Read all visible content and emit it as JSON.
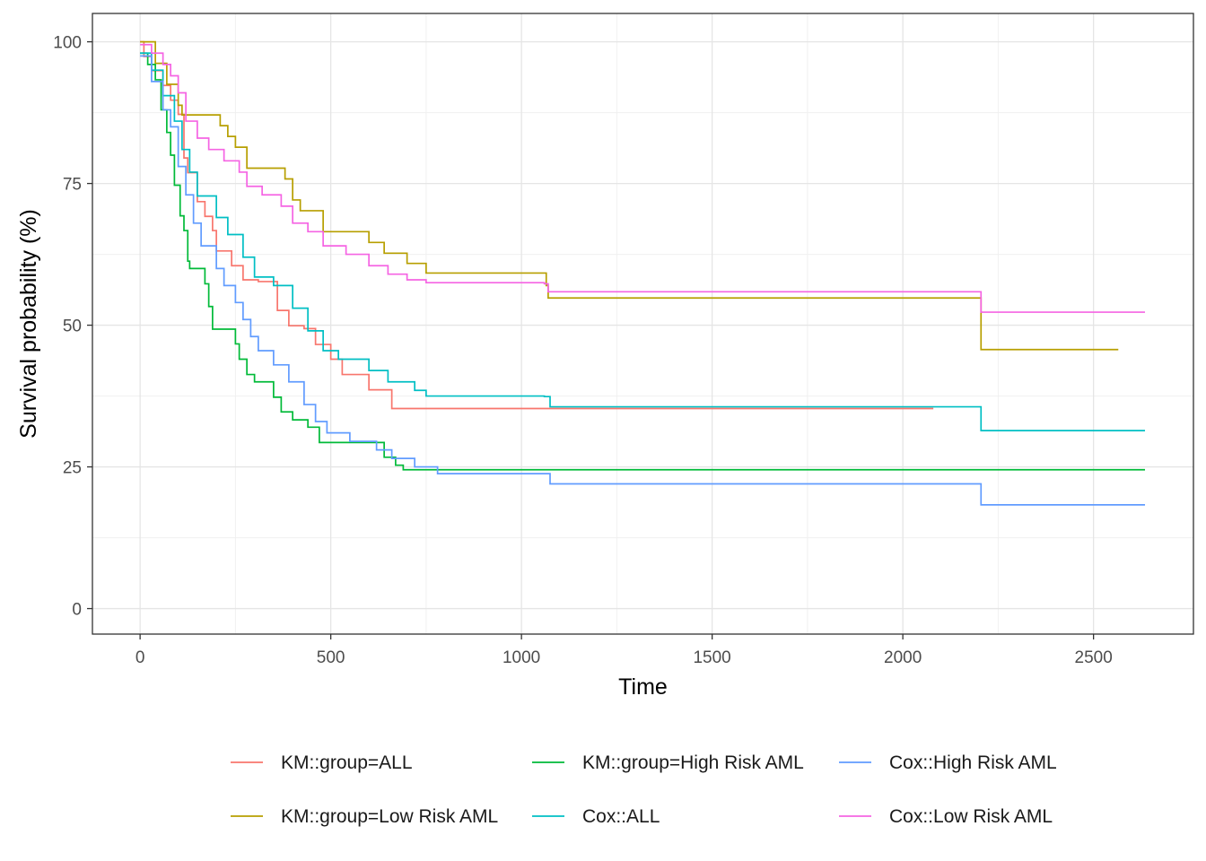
{
  "chart_data": {
    "type": "line",
    "step": true,
    "title": "",
    "xlabel": "Time",
    "ylabel": "Survival probability (%)",
    "xlim": [
      -125,
      2762
    ],
    "ylim": [
      -4.5,
      105
    ],
    "x_ticks": [
      0,
      500,
      1000,
      1500,
      2000,
      2500
    ],
    "x_tick_labels": [
      "0",
      "500",
      "1000",
      "1500",
      "2000",
      "2500"
    ],
    "y_ticks": [
      0,
      25,
      50,
      75,
      100
    ],
    "y_tick_labels": [
      "0",
      "25",
      "50",
      "75",
      "100"
    ],
    "grid": true,
    "legend_position": "bottom",
    "series": [
      {
        "name": "KM::group=ALL",
        "color": "#F8766D",
        "points": [
          [
            0,
            100
          ],
          [
            10,
            97.4
          ],
          [
            30,
            94.9
          ],
          [
            60,
            92.3
          ],
          [
            80,
            89.7
          ],
          [
            100,
            87.2
          ],
          [
            115,
            79.5
          ],
          [
            125,
            76.9
          ],
          [
            150,
            71.8
          ],
          [
            170,
            69.2
          ],
          [
            190,
            66.7
          ],
          [
            200,
            63.1
          ],
          [
            240,
            60.5
          ],
          [
            270,
            58
          ],
          [
            310,
            57.7
          ],
          [
            360,
            52.6
          ],
          [
            390,
            49.9
          ],
          [
            430,
            49.4
          ],
          [
            460,
            46.6
          ],
          [
            500,
            44
          ],
          [
            530,
            41.3
          ],
          [
            600,
            38.6
          ],
          [
            660,
            35.3
          ],
          [
            2080,
            35.3
          ]
        ]
      },
      {
        "name": "KM::group=Low Risk AML",
        "color": "#B79F00",
        "points": [
          [
            0,
            100
          ],
          [
            40,
            96.2
          ],
          [
            70,
            92.5
          ],
          [
            100,
            88.8
          ],
          [
            110,
            87.1
          ],
          [
            210,
            85.2
          ],
          [
            230,
            83.3
          ],
          [
            250,
            81.4
          ],
          [
            280,
            77.7
          ],
          [
            380,
            75.8
          ],
          [
            400,
            72.1
          ],
          [
            420,
            70.2
          ],
          [
            480,
            66.5
          ],
          [
            600,
            64.6
          ],
          [
            640,
            62.7
          ],
          [
            700,
            60.9
          ],
          [
            750,
            59.2
          ],
          [
            1065,
            57
          ],
          [
            1070,
            54.8
          ],
          [
            2200,
            54.8
          ],
          [
            2205,
            45.7
          ],
          [
            2565,
            45.7
          ]
        ]
      },
      {
        "name": "KM::group=High Risk AML",
        "color": "#00BA38",
        "points": [
          [
            0,
            98
          ],
          [
            20,
            96
          ],
          [
            40,
            93.3
          ],
          [
            55,
            88
          ],
          [
            70,
            84
          ],
          [
            80,
            80
          ],
          [
            90,
            74.7
          ],
          [
            105,
            69.3
          ],
          [
            115,
            66.7
          ],
          [
            125,
            61.3
          ],
          [
            130,
            60
          ],
          [
            170,
            57.3
          ],
          [
            180,
            53.3
          ],
          [
            190,
            49.3
          ],
          [
            250,
            46.7
          ],
          [
            260,
            44
          ],
          [
            280,
            41.3
          ],
          [
            300,
            40
          ],
          [
            350,
            37.3
          ],
          [
            370,
            34.7
          ],
          [
            400,
            33.3
          ],
          [
            440,
            32
          ],
          [
            470,
            29.3
          ],
          [
            640,
            26.7
          ],
          [
            670,
            25.3
          ],
          [
            690,
            24.5
          ],
          [
            2635,
            24.5
          ]
        ]
      },
      {
        "name": "Cox::ALL",
        "color": "#00BFC4",
        "points": [
          [
            0,
            98
          ],
          [
            30,
            95
          ],
          [
            60,
            90.5
          ],
          [
            90,
            86
          ],
          [
            110,
            81
          ],
          [
            130,
            77
          ],
          [
            150,
            72.8
          ],
          [
            200,
            69
          ],
          [
            230,
            66
          ],
          [
            270,
            62
          ],
          [
            300,
            58.5
          ],
          [
            350,
            57
          ],
          [
            400,
            53
          ],
          [
            440,
            49
          ],
          [
            480,
            45.5
          ],
          [
            520,
            44
          ],
          [
            600,
            42
          ],
          [
            650,
            40
          ],
          [
            720,
            38.5
          ],
          [
            750,
            37.5
          ],
          [
            1060,
            37.4
          ],
          [
            1075,
            35.6
          ],
          [
            2200,
            35.6
          ],
          [
            2205,
            31.4
          ],
          [
            2635,
            31.4
          ]
        ]
      },
      {
        "name": "Cox::High Risk AML",
        "color": "#619CFF",
        "points": [
          [
            0,
            97.5
          ],
          [
            30,
            93
          ],
          [
            60,
            88
          ],
          [
            80,
            85
          ],
          [
            100,
            78
          ],
          [
            120,
            73
          ],
          [
            140,
            68
          ],
          [
            160,
            64
          ],
          [
            200,
            60
          ],
          [
            220,
            57
          ],
          [
            250,
            54
          ],
          [
            270,
            51
          ],
          [
            290,
            48
          ],
          [
            310,
            45.5
          ],
          [
            350,
            43
          ],
          [
            390,
            40
          ],
          [
            430,
            36
          ],
          [
            460,
            33
          ],
          [
            490,
            31
          ],
          [
            550,
            29.5
          ],
          [
            620,
            28
          ],
          [
            660,
            26.5
          ],
          [
            720,
            25
          ],
          [
            780,
            23.8
          ],
          [
            1060,
            23.8
          ],
          [
            1075,
            22
          ],
          [
            2200,
            22
          ],
          [
            2205,
            18.3
          ],
          [
            2635,
            18.3
          ]
        ]
      },
      {
        "name": "Cox::Low Risk AML",
        "color": "#F564E3",
        "points": [
          [
            0,
            99.5
          ],
          [
            30,
            98
          ],
          [
            60,
            96
          ],
          [
            80,
            94
          ],
          [
            100,
            91
          ],
          [
            120,
            86
          ],
          [
            150,
            83
          ],
          [
            180,
            81
          ],
          [
            220,
            79
          ],
          [
            260,
            77
          ],
          [
            280,
            74.5
          ],
          [
            320,
            73
          ],
          [
            370,
            71
          ],
          [
            400,
            68
          ],
          [
            440,
            66.5
          ],
          [
            480,
            64
          ],
          [
            540,
            62.5
          ],
          [
            600,
            60.5
          ],
          [
            650,
            59
          ],
          [
            700,
            58
          ],
          [
            750,
            57.5
          ],
          [
            1060,
            57.3
          ],
          [
            1070,
            55.9
          ],
          [
            2200,
            55.9
          ],
          [
            2205,
            52.3
          ],
          [
            2635,
            52.3
          ]
        ]
      }
    ],
    "legend": {
      "rows": [
        [
          "KM::group=ALL",
          "KM::group=High Risk AML",
          "Cox::High Risk AML"
        ],
        [
          "KM::group=Low Risk AML",
          "Cox::ALL",
          "Cox::Low Risk AML"
        ]
      ]
    }
  }
}
